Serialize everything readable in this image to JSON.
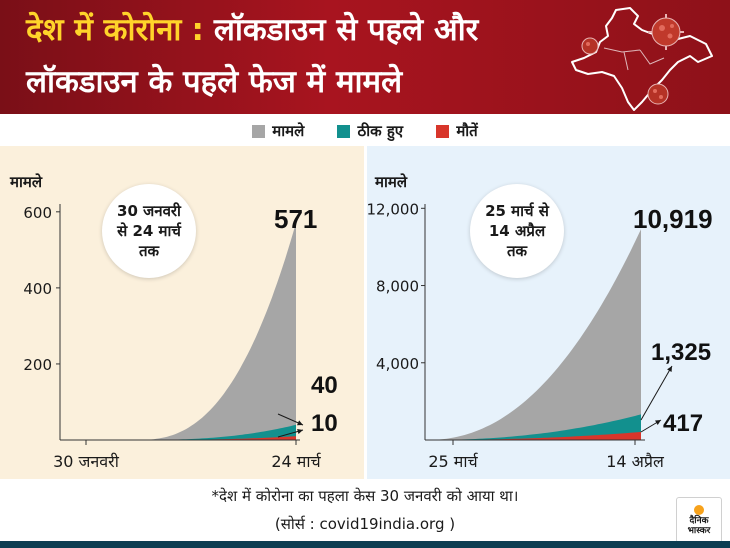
{
  "header": {
    "title_part1": "देश में कोरोना",
    "title_colon": ":",
    "title_part2": "लॉकडाउन से पहले और",
    "title_line2": "लॉकडाउन के पहले फेज में मामले"
  },
  "legend": [
    {
      "label": "मामले",
      "color": "#a6a6a6"
    },
    {
      "label": "ठीक हुए",
      "color": "#12908e"
    },
    {
      "label": "मौतें",
      "color": "#d8362b"
    }
  ],
  "chart_data": [
    {
      "type": "area",
      "title": "30 जनवरी से 24 मार्च तक",
      "badge_lines": [
        "30 जनवरी",
        "से 24 मार्च",
        "तक"
      ],
      "ylabel": "मामले",
      "ylim": [
        0,
        660
      ],
      "yticks": [
        {
          "value": 200,
          "label": "200"
        },
        {
          "value": 400,
          "label": "400"
        },
        {
          "value": 600,
          "label": "600"
        }
      ],
      "xticks": [
        "30 जनवरी",
        "24 मार्च"
      ],
      "series": [
        {
          "name": "मामले",
          "end_value": 571,
          "end_label": "571",
          "color": "#a6a6a6"
        },
        {
          "name": "ठीक हुए",
          "end_value": 40,
          "end_label": "40",
          "color": "#12908e"
        },
        {
          "name": "मौतें",
          "end_value": 10,
          "end_label": "10",
          "color": "#d8362b"
        }
      ]
    },
    {
      "type": "area",
      "title": "25 मार्च से 14 अप्रैल तक",
      "badge_lines": [
        "25 मार्च से",
        "14 अप्रैल",
        "तक"
      ],
      "ylabel": "मामले",
      "ylim": [
        0,
        13000
      ],
      "yticks": [
        {
          "value": 4000,
          "label": "4,000"
        },
        {
          "value": 8000,
          "label": "8,000"
        },
        {
          "value": 12000,
          "label": "12,000"
        }
      ],
      "xticks": [
        "25 मार्च",
        "14 अप्रैल"
      ],
      "series": [
        {
          "name": "मामले",
          "end_value": 10919,
          "end_label": "10,919",
          "color": "#a6a6a6"
        },
        {
          "name": "ठीक हुए",
          "end_value": 1325,
          "end_label": "1,325",
          "color": "#12908e"
        },
        {
          "name": "मौतें",
          "end_value": 417,
          "end_label": "417",
          "color": "#d8362b"
        }
      ]
    }
  ],
  "footnote": "*देश में कोरोना का पहला केस 30 जनवरी को आया था।",
  "source": "(सोर्स : covid19india.org )",
  "logo": {
    "line1": "दैनिक",
    "line2": "भास्कर"
  }
}
